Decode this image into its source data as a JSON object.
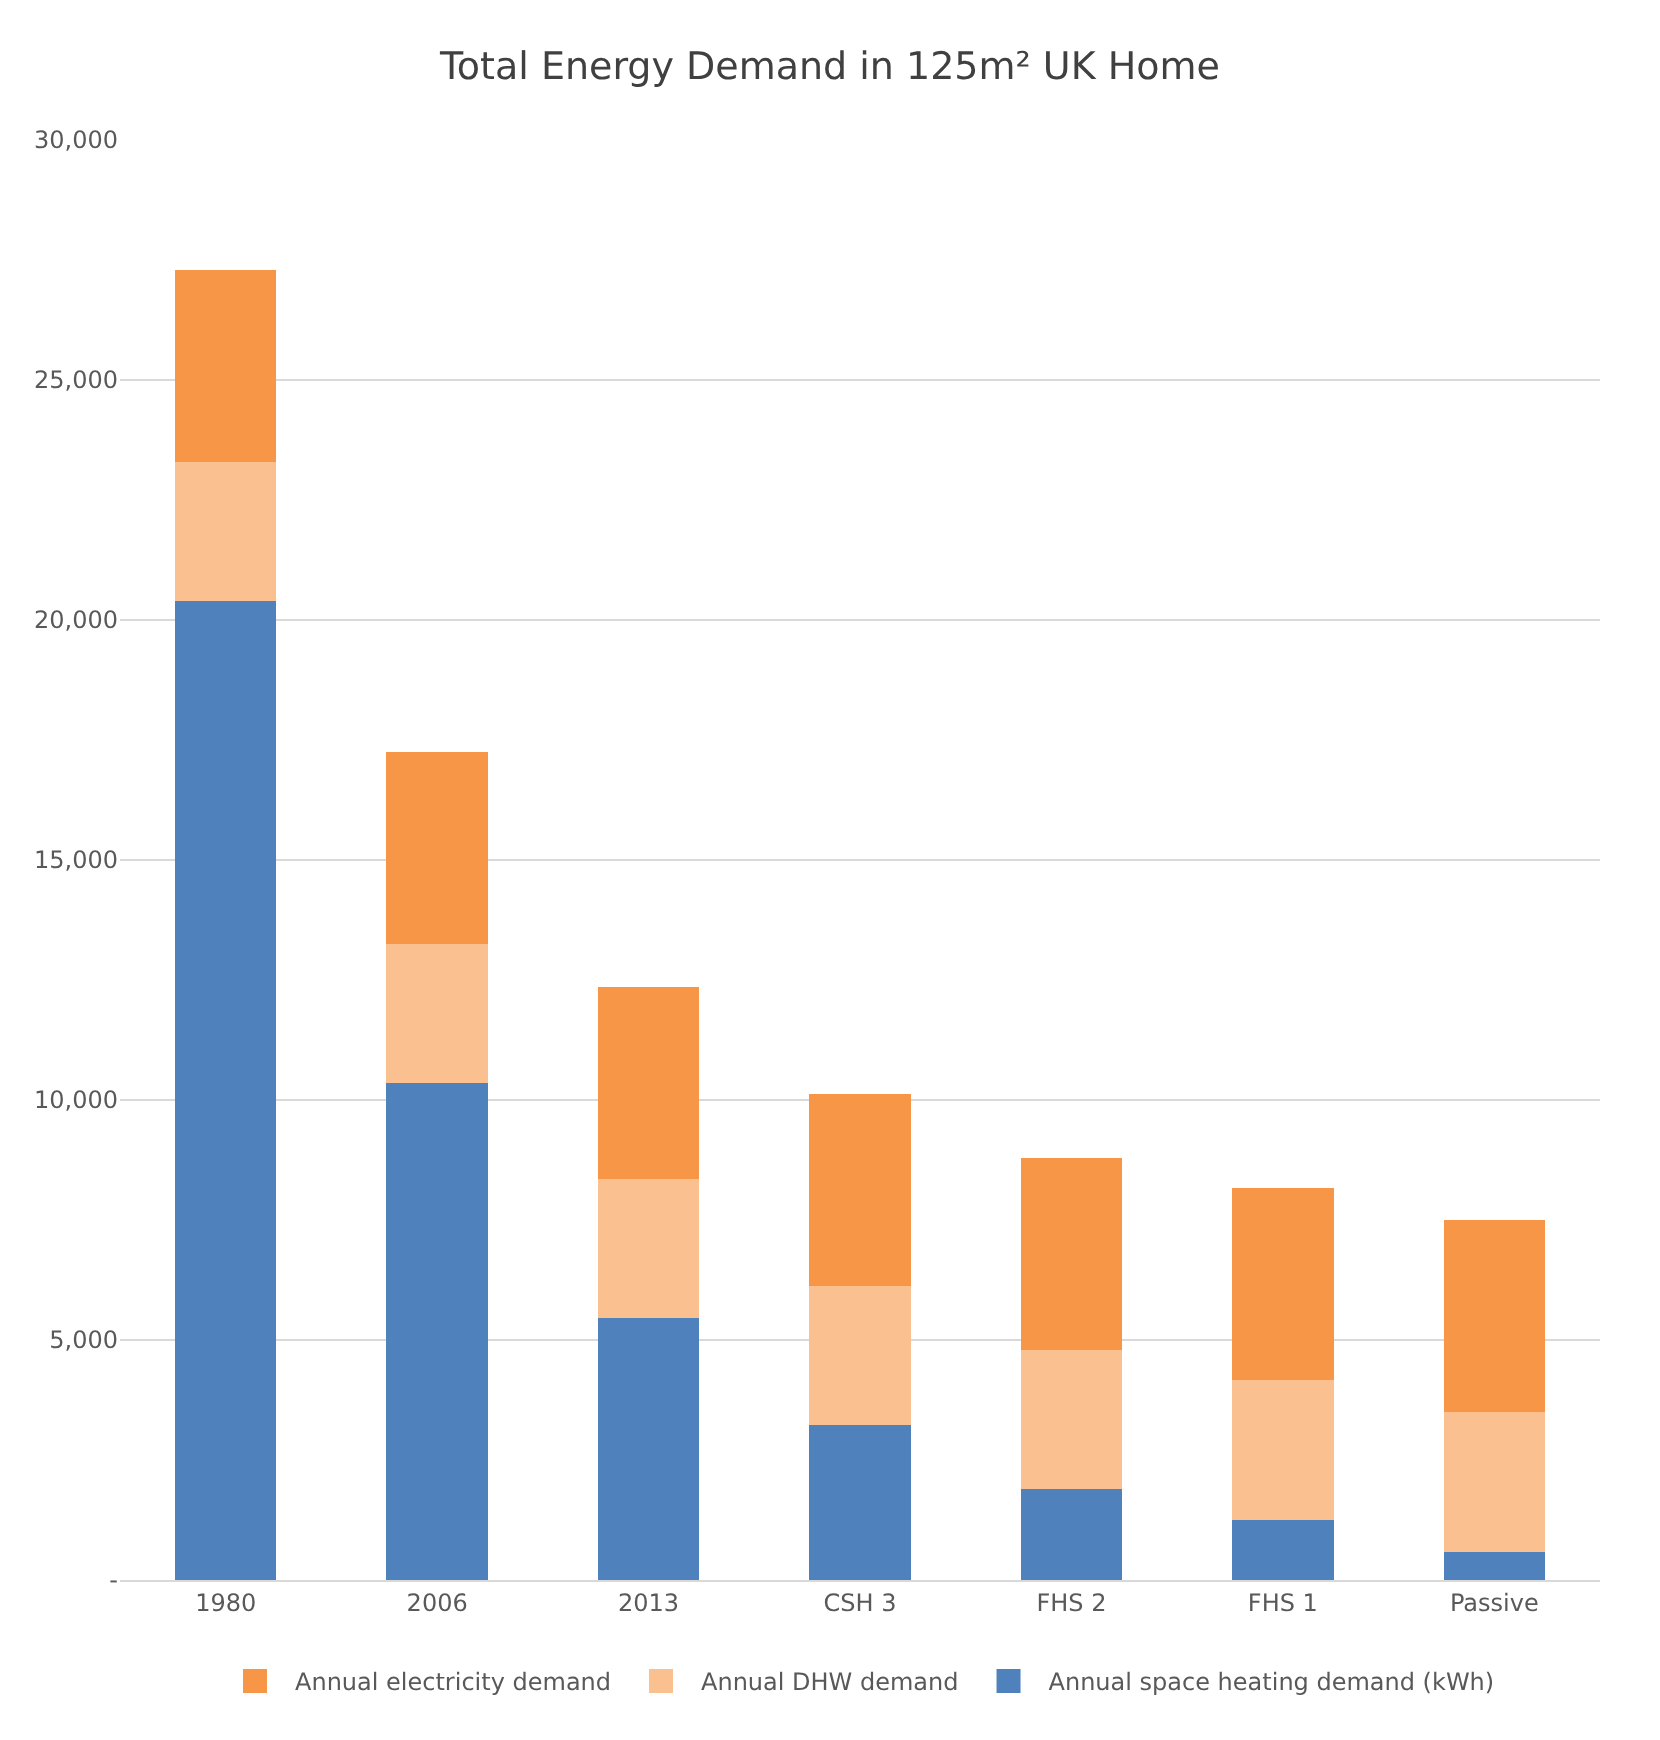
{
  "chart_data": {
    "type": "bar",
    "title": "Total Energy Demand in 125m² UK Home",
    "categories": [
      "1980",
      "2006",
      "2013",
      "CSH 3",
      "FHS 2",
      "FHS 1",
      "Passive"
    ],
    "stacked": true,
    "series": [
      {
        "name": "Annual space heating demand (kWh)",
        "color": "#4f81bd",
        "values": [
          20400,
          10350,
          5450,
          3230,
          1890,
          1260,
          590
        ]
      },
      {
        "name": "Annual DHW demand",
        "color": "#fac090",
        "values": [
          2900,
          2900,
          2900,
          2900,
          2900,
          2900,
          2900
        ]
      },
      {
        "name": "Annual electricity demand",
        "color": "#f79646",
        "values": [
          4000,
          4000,
          4000,
          4000,
          4000,
          4000,
          4000
        ]
      }
    ],
    "ylim": [
      0,
      30000
    ],
    "yticks": [
      {
        "value": 0,
        "label": "-"
      },
      {
        "value": 5000,
        "label": "5,000"
      },
      {
        "value": 10000,
        "label": "10,000"
      },
      {
        "value": 15000,
        "label": "15,000"
      },
      {
        "value": 20000,
        "label": "20,000"
      },
      {
        "value": 25000,
        "label": "25,000"
      },
      {
        "value": 30000,
        "label": "30,000"
      }
    ],
    "grid": "y",
    "legend": "bottom"
  }
}
